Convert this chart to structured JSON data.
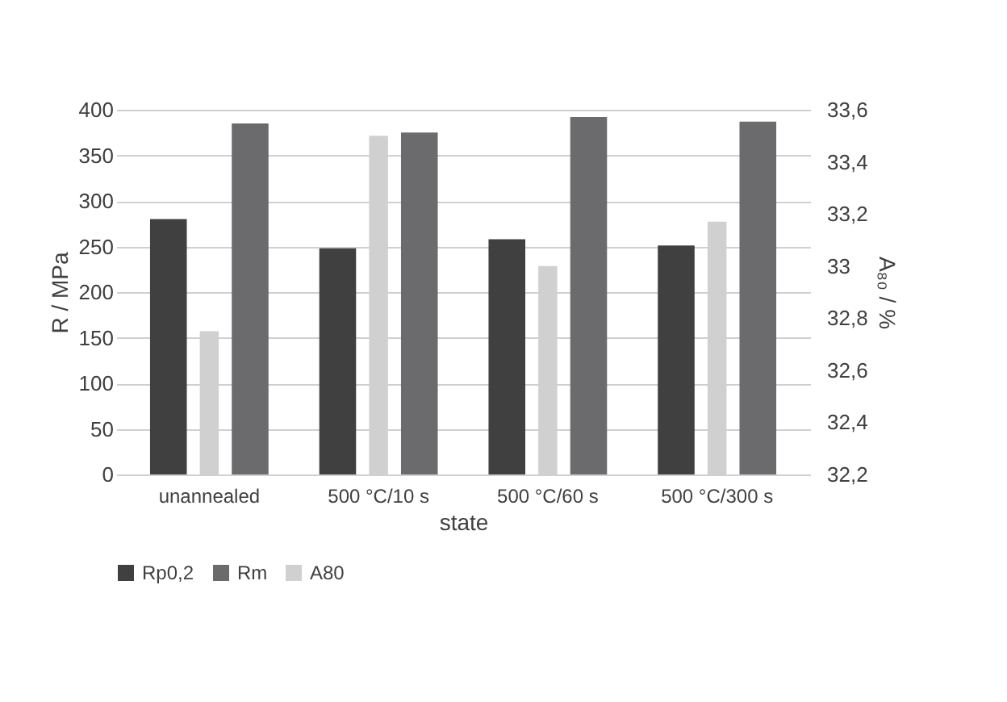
{
  "chart_data": {
    "type": "bar",
    "xlabel": "state",
    "ylabel": "R / MPa",
    "y2label": "A₈₀ / %",
    "categories": [
      "unannealed",
      "500 °C/10 s",
      "500 °C/60 s",
      "500 °C/300 s"
    ],
    "series": [
      {
        "name": "Rp0,2",
        "color": "#404040",
        "values": [
          280,
          248,
          258,
          251
        ]
      },
      {
        "name": "Rm",
        "color": "#6b6b6e",
        "values": [
          385,
          375,
          392,
          387
        ]
      },
      {
        "name": "A80",
        "color": "#d0d0d0",
        "axis": "y2",
        "values": [
          32.75,
          33.5,
          33.0,
          33.17
        ]
      }
    ],
    "ylim": [
      0,
      400
    ],
    "yticks": [
      0,
      50,
      100,
      150,
      200,
      250,
      300,
      350,
      400
    ],
    "y2lim": [
      32.2,
      33.6
    ],
    "y2ticks": [
      {
        "value": 32.2,
        "label": "32,2"
      },
      {
        "value": 32.4,
        "label": "32,4"
      },
      {
        "value": 32.6,
        "label": "32,6"
      },
      {
        "value": 32.8,
        "label": "32,8"
      },
      33,
      {
        "value": 33.2,
        "label": "33,2"
      },
      {
        "value": 33.4,
        "label": "33,4"
      },
      {
        "value": 33.6,
        "label": "33,6"
      }
    ],
    "grid": "y",
    "legend": "bottom"
  }
}
